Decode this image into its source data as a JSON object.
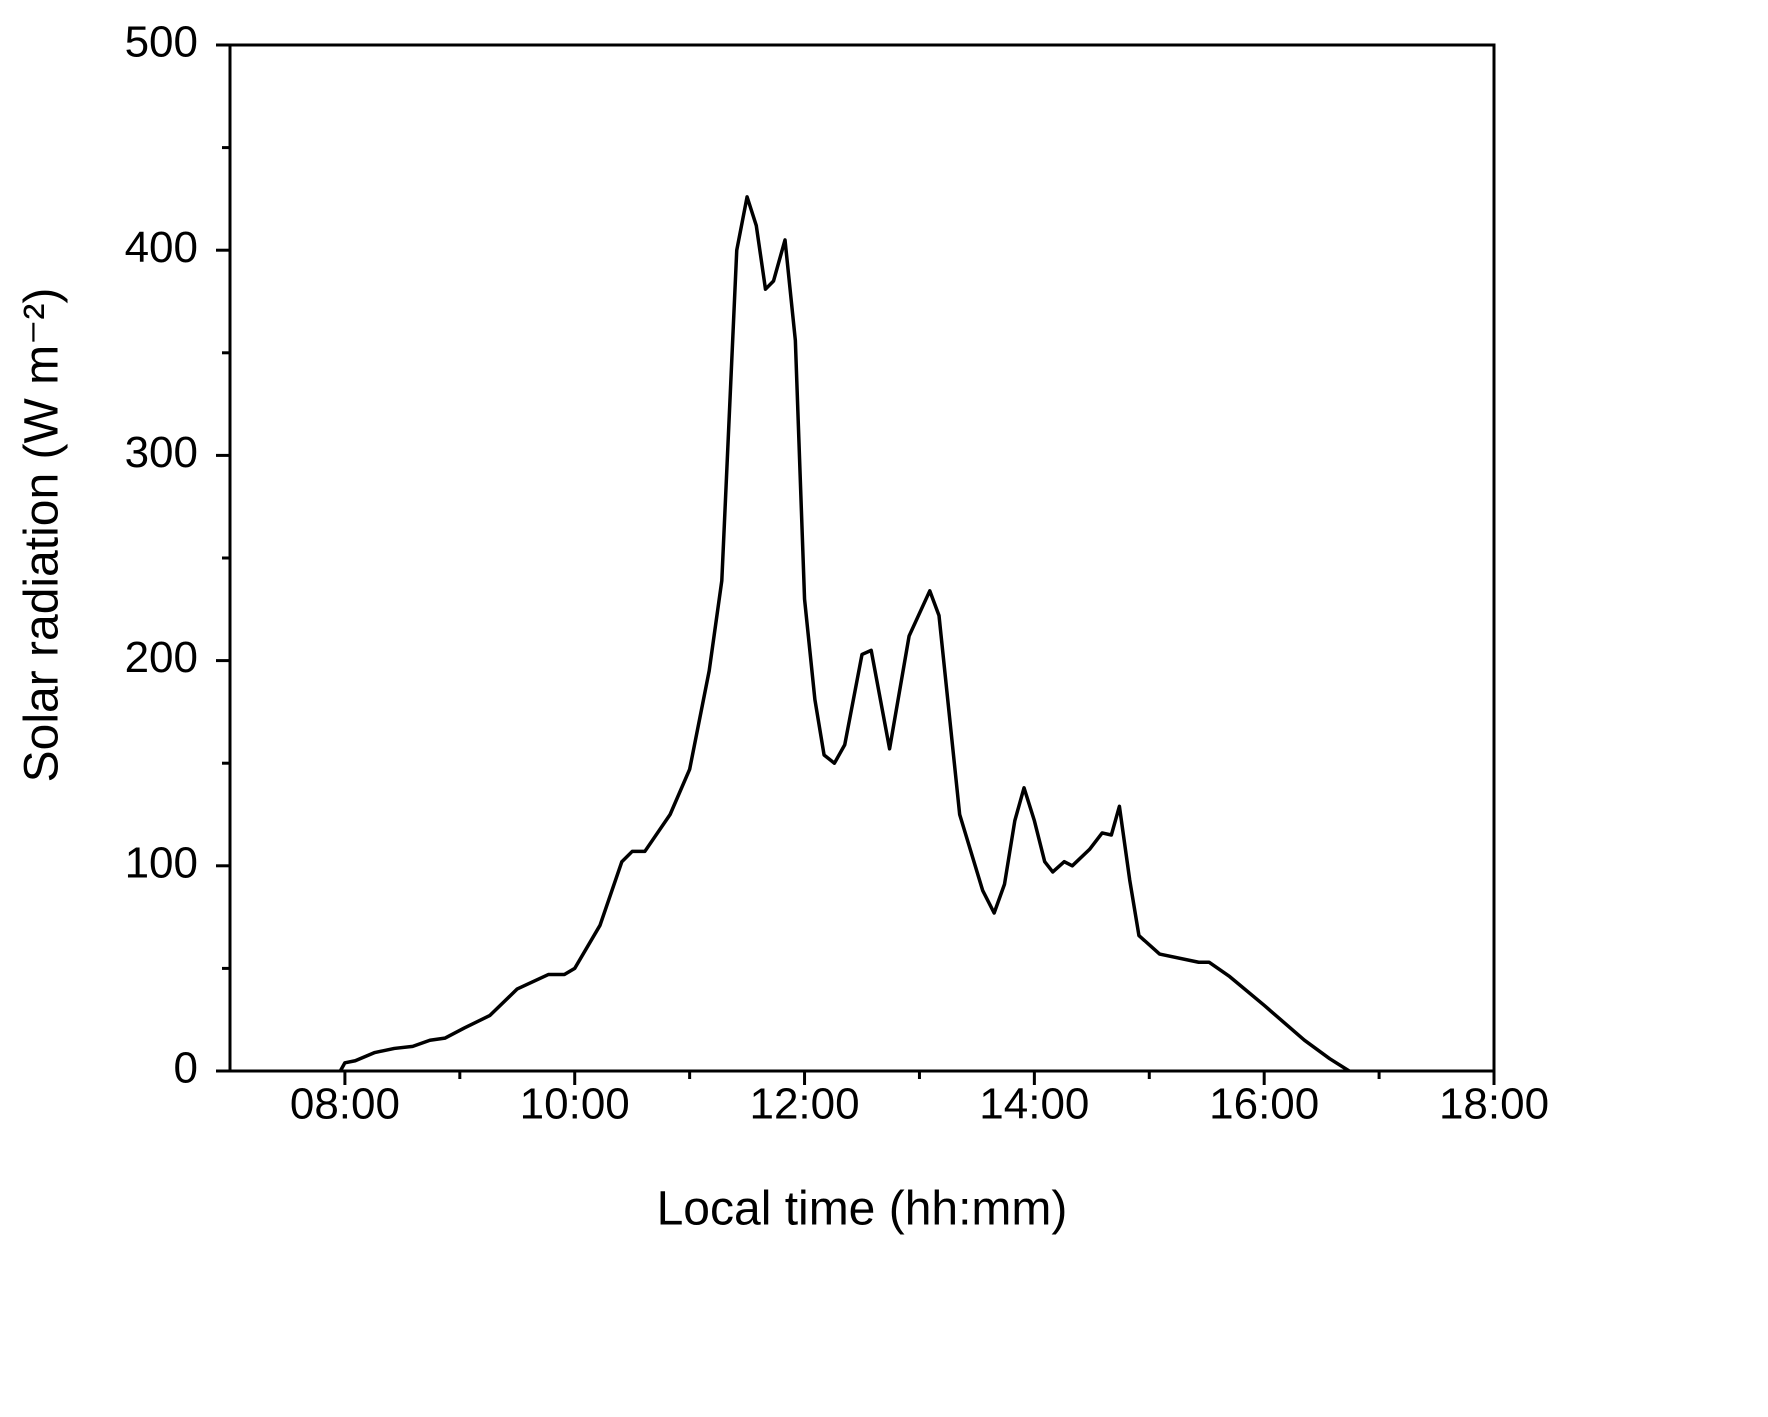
{
  "chart_data": {
    "type": "line",
    "xlabel": "Local time (hh:mm)",
    "ylabel": "Solar radiation (W m⁻²)",
    "x": [
      7.96,
      8.0,
      8.09,
      8.26,
      8.43,
      8.59,
      8.74,
      8.87,
      9.04,
      9.26,
      9.5,
      9.77,
      9.91,
      10.0,
      10.22,
      10.41,
      10.5,
      10.61,
      10.83,
      11.0,
      11.17,
      11.28,
      11.41,
      11.5,
      11.58,
      11.66,
      11.73,
      11.83,
      11.92,
      12.0,
      12.09,
      12.17,
      12.26,
      12.35,
      12.5,
      12.58,
      12.74,
      12.91,
      13.09,
      13.17,
      13.35,
      13.55,
      13.65,
      13.74,
      13.83,
      13.91,
      14.0,
      14.09,
      14.16,
      14.26,
      14.33,
      14.48,
      14.59,
      14.67,
      14.74,
      14.83,
      14.91,
      15.09,
      15.43,
      15.52,
      15.7,
      16.0,
      16.35,
      16.57,
      16.74
    ],
    "series": [
      {
        "color": "#000000",
        "values": [
          0,
          4,
          5,
          9,
          11,
          12,
          15,
          16,
          21,
          27,
          40,
          47,
          47,
          50,
          71,
          102,
          107,
          107,
          125,
          147,
          195,
          239,
          400,
          426,
          412,
          381,
          385,
          405,
          356,
          230,
          181,
          154,
          150,
          159,
          203,
          205,
          157,
          212,
          234,
          222,
          125,
          88,
          77,
          91,
          122,
          138,
          122,
          102,
          97,
          102,
          100,
          108,
          116,
          115,
          129,
          93,
          66,
          57,
          53,
          53,
          46,
          32,
          15,
          6,
          0
        ]
      }
    ],
    "xlim": [
      7,
      18
    ],
    "xticks": [
      {
        "value": 8,
        "label": "08:00"
      },
      {
        "value": 10,
        "label": "10:00"
      },
      {
        "value": 12,
        "label": "12:00"
      },
      {
        "value": 14,
        "label": "14:00"
      },
      {
        "value": 16,
        "label": "16:00"
      },
      {
        "value": 18,
        "label": "18:00"
      }
    ],
    "ylim": [
      0,
      500
    ],
    "yticks": [
      0,
      100,
      200,
      300,
      400,
      500
    ]
  }
}
